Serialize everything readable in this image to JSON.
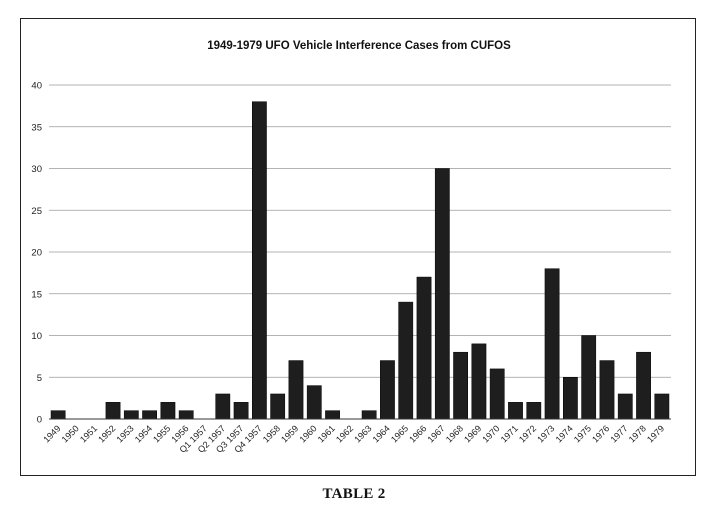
{
  "caption": "TABLE 2",
  "chart_data": {
    "type": "bar",
    "title": "1949-1979 UFO Vehicle Interference Cases from CUFOS",
    "xlabel": "",
    "ylabel": "",
    "ylim": [
      0,
      40
    ],
    "yticks": [
      0,
      5,
      10,
      15,
      20,
      25,
      30,
      35,
      40
    ],
    "grid": true,
    "bar_color": "#1e1e1e",
    "categories": [
      "1949",
      "1950",
      "1951",
      "1952",
      "1953",
      "1954",
      "1955",
      "1956",
      "Q1 1957",
      "Q2 1957",
      "Q3 1957",
      "Q4 1957",
      "1958",
      "1959",
      "1960",
      "1961",
      "1962",
      "1963",
      "1964",
      "1965",
      "1966",
      "1967",
      "1968",
      "1969",
      "1970",
      "1971",
      "1972",
      "1973",
      "1974",
      "1975",
      "1976",
      "1977",
      "1978",
      "1979"
    ],
    "values": [
      1,
      0,
      0,
      2,
      1,
      1,
      2,
      1,
      0,
      3,
      2,
      38,
      3,
      7,
      4,
      1,
      0,
      1,
      7,
      14,
      17,
      30,
      8,
      9,
      6,
      2,
      2,
      18,
      5,
      10,
      7,
      3,
      8,
      3
    ]
  }
}
